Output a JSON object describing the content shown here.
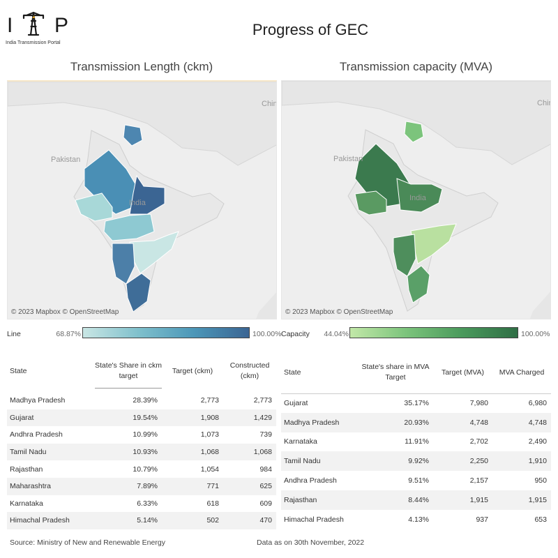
{
  "logo": {
    "letter_left": "I",
    "letter_right": "P",
    "subtitle": "India Transmission Portal",
    "icon": "transmission-tower-icon"
  },
  "page_title": "Progress of GEC",
  "left_panel": {
    "title": "Transmission Length (ckm)",
    "map_labels": {
      "pakistan": "Pakistan",
      "india": "India",
      "china": "Chin"
    },
    "attribution": "© 2023 Mapbox © OpenStreetMap",
    "legend": {
      "title": "Line",
      "min": "68.87%",
      "max": "100.00%"
    },
    "accent_color": "#3b6593",
    "table": {
      "headers": [
        "State",
        "State's Share in ckm target",
        "Target (ckm)",
        "Constructed (ckm)"
      ],
      "rows": [
        [
          "Madhya Pradesh",
          "28.39%",
          "2,773",
          "2,773"
        ],
        [
          "Gujarat",
          "19.54%",
          "1,908",
          "1,429"
        ],
        [
          "Andhra Pradesh",
          "10.99%",
          "1,073",
          "739"
        ],
        [
          "Tamil Nadu",
          "10.93%",
          "1,068",
          "1,068"
        ],
        [
          "Rajasthan",
          "10.79%",
          "1,054",
          "984"
        ],
        [
          "Maharashtra",
          "7.89%",
          "771",
          "625"
        ],
        [
          "Karnataka",
          "6.33%",
          "618",
          "609"
        ],
        [
          "Himachal Pradesh",
          "5.14%",
          "502",
          "470"
        ]
      ]
    }
  },
  "right_panel": {
    "title": "Transmission capacity (MVA)",
    "map_labels": {
      "pakistan": "Pakistan",
      "india": "India",
      "china": "Chin"
    },
    "attribution": "© 2023 Mapbox © OpenStreetMap",
    "legend": {
      "title": "Capacity",
      "min": "44.04%",
      "max": "100.00%"
    },
    "accent_color": "#2f6e45",
    "table": {
      "headers": [
        "State",
        "State's share in MVA Target",
        "Target (MVA)",
        "MVA Charged"
      ],
      "rows": [
        [
          "Gujarat",
          "35.17%",
          "7,980",
          "6,980"
        ],
        [
          "Madhya Pradesh",
          "20.93%",
          "4,748",
          "4,748"
        ],
        [
          "Karnataka",
          "11.91%",
          "2,702",
          "2,490"
        ],
        [
          "Tamil Nadu",
          "9.92%",
          "2,250",
          "1,910"
        ],
        [
          "Andhra Pradesh",
          "9.51%",
          "2,157",
          "950"
        ],
        [
          "Rajasthan",
          "8.44%",
          "1,915",
          "1,915"
        ],
        [
          "Himachal Pradesh",
          "4.13%",
          "937",
          "653"
        ]
      ]
    }
  },
  "footer": {
    "source": "Source: Ministry of New and Renewable Energy",
    "as_of": "Data as on 30th November, 2022"
  }
}
